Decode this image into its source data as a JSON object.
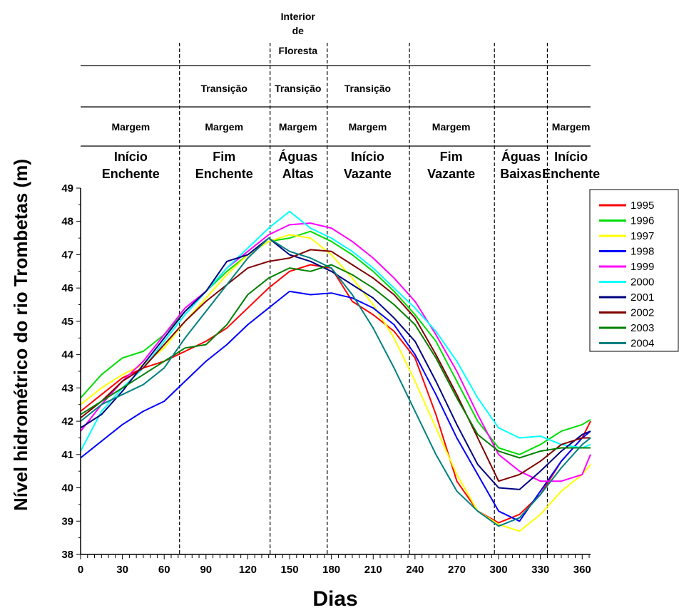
{
  "chart_data": {
    "type": "line",
    "title": "",
    "xlabel": "Dias",
    "ylabel": "Nível hidrométrico do rio Trombetas (m)",
    "xlim": [
      0,
      366
    ],
    "ylim": [
      38,
      49
    ],
    "xticks": [
      0,
      30,
      60,
      90,
      120,
      150,
      180,
      210,
      240,
      270,
      300,
      330,
      360
    ],
    "yticks": [
      38,
      39,
      40,
      41,
      42,
      43,
      44,
      45,
      46,
      47,
      48,
      49
    ],
    "grid": false,
    "legend_position": "right",
    "dividers": [
      71,
      136,
      177,
      236,
      297,
      335
    ],
    "annotation_rows": {
      "floresta": [
        {
          "text": "Interior",
          "x": 156
        },
        {
          "text": "de",
          "x": 156
        },
        {
          "text": "Floresta",
          "x": 156
        }
      ],
      "transicao": [
        {
          "text": "Transição",
          "x": 103
        },
        {
          "text": "Transição",
          "x": 156
        },
        {
          "text": "Transição",
          "x": 206
        }
      ],
      "margem": [
        {
          "text": "Margem",
          "x": 36
        },
        {
          "text": "Margem",
          "x": 103
        },
        {
          "text": "Margem",
          "x": 156
        },
        {
          "text": "Margem",
          "x": 206
        },
        {
          "text": "Margem",
          "x": 266
        },
        {
          "text": "Margem",
          "x": 352
        }
      ],
      "fase": [
        {
          "line1": "Início",
          "line2": "Enchente",
          "x": 36
        },
        {
          "line1": "Fim",
          "line2": "Enchente",
          "x": 103
        },
        {
          "line1": "Águas",
          "line2": "Altas",
          "x": 156
        },
        {
          "line1": "Início",
          "line2": "Vazante",
          "x": 206
        },
        {
          "line1": "Fim",
          "line2": "Vazante",
          "x": 266
        },
        {
          "line1": "Águas",
          "line2": "Baixas",
          "x": 316
        },
        {
          "line1": "Início",
          "line2": "Enchente",
          "x": 352
        }
      ]
    },
    "x": [
      0,
      15,
      30,
      45,
      60,
      75,
      90,
      105,
      120,
      135,
      150,
      165,
      180,
      195,
      210,
      225,
      240,
      255,
      270,
      285,
      300,
      315,
      330,
      345,
      360,
      366
    ],
    "series": [
      {
        "name": "1995",
        "color": "#ff0000",
        "values": [
          42.3,
          42.8,
          43.3,
          43.6,
          43.8,
          44.1,
          44.4,
          44.8,
          45.4,
          46.0,
          46.5,
          46.7,
          46.6,
          45.6,
          45.2,
          44.7,
          43.9,
          42.2,
          40.2,
          39.3,
          38.95,
          39.2,
          39.8,
          40.8,
          41.5,
          42.0
        ]
      },
      {
        "name": "1996",
        "color": "#00dd00",
        "values": [
          42.7,
          43.4,
          43.9,
          44.1,
          44.6,
          45.3,
          45.9,
          46.5,
          47.0,
          47.4,
          47.5,
          47.7,
          47.4,
          47.0,
          46.5,
          45.9,
          45.2,
          44.4,
          43.2,
          42.0,
          41.2,
          41.0,
          41.3,
          41.7,
          41.9,
          42.05
        ]
      },
      {
        "name": "1997",
        "color": "#ffff00",
        "values": [
          42.5,
          43.0,
          43.4,
          43.7,
          44.2,
          45.0,
          45.7,
          46.4,
          47.0,
          47.4,
          47.6,
          47.5,
          47.0,
          46.3,
          45.5,
          44.5,
          43.2,
          41.8,
          40.4,
          39.3,
          38.9,
          38.7,
          39.2,
          39.9,
          40.4,
          40.7
        ]
      },
      {
        "name": "1998",
        "color": "#0000ff",
        "values": [
          40.9,
          41.4,
          41.9,
          42.3,
          42.6,
          43.2,
          43.8,
          44.3,
          44.9,
          45.4,
          45.9,
          45.8,
          45.85,
          45.7,
          45.4,
          44.9,
          44.0,
          42.8,
          41.5,
          40.4,
          39.3,
          39.0,
          39.9,
          40.8,
          41.5,
          41.7
        ]
      },
      {
        "name": "1999",
        "color": "#ff00ff",
        "values": [
          41.7,
          42.5,
          43.2,
          43.8,
          44.6,
          45.4,
          45.9,
          46.6,
          47.1,
          47.6,
          47.9,
          47.95,
          47.8,
          47.4,
          46.9,
          46.3,
          45.6,
          44.6,
          43.5,
          42.2,
          41.0,
          40.5,
          40.2,
          40.2,
          40.4,
          41.0
        ]
      },
      {
        "name": "2000",
        "color": "#00ffff",
        "values": [
          41.1,
          42.3,
          43.0,
          43.6,
          44.4,
          45.2,
          45.9,
          46.6,
          47.2,
          47.8,
          48.3,
          47.8,
          47.5,
          47.1,
          46.6,
          46.0,
          45.4,
          44.7,
          43.8,
          42.7,
          41.8,
          41.5,
          41.55,
          41.3,
          41.2,
          41.3
        ]
      },
      {
        "name": "2001",
        "color": "#000080",
        "values": [
          41.8,
          42.2,
          42.9,
          43.7,
          44.5,
          45.3,
          45.9,
          46.8,
          47.0,
          47.5,
          47.0,
          46.8,
          46.5,
          46.1,
          45.7,
          45.1,
          44.4,
          43.2,
          41.9,
          40.7,
          40.0,
          39.95,
          40.5,
          41.1,
          41.6,
          41.7
        ]
      },
      {
        "name": "2002",
        "color": "#800000",
        "values": [
          42.1,
          42.6,
          43.2,
          43.6,
          44.3,
          45.0,
          45.6,
          46.1,
          46.6,
          46.8,
          46.9,
          47.15,
          47.1,
          46.7,
          46.3,
          45.8,
          45.1,
          44.0,
          42.8,
          41.5,
          40.2,
          40.4,
          40.8,
          41.3,
          41.5,
          41.5
        ]
      },
      {
        "name": "2003",
        "color": "#008000",
        "values": [
          42.2,
          42.6,
          43.0,
          43.4,
          43.8,
          44.2,
          44.3,
          44.9,
          45.8,
          46.3,
          46.6,
          46.5,
          46.7,
          46.4,
          46.0,
          45.5,
          44.9,
          43.9,
          42.7,
          41.6,
          41.1,
          40.9,
          41.1,
          41.2,
          41.2,
          41.2
        ]
      },
      {
        "name": "2004",
        "color": "#008080",
        "values": [
          42.0,
          42.5,
          42.8,
          43.1,
          43.6,
          44.5,
          45.3,
          46.1,
          46.9,
          47.5,
          47.1,
          46.9,
          46.6,
          45.8,
          44.8,
          43.6,
          42.3,
          41.0,
          39.9,
          39.3,
          38.85,
          39.1,
          39.8,
          40.6,
          41.3,
          41.5
        ]
      }
    ]
  }
}
